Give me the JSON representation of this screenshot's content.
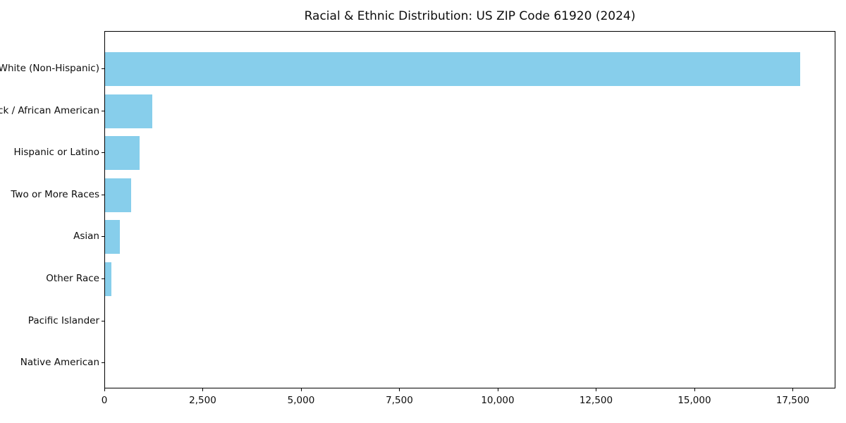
{
  "chart_data": {
    "type": "bar",
    "orientation": "horizontal",
    "title": "Racial & Ethnic Distribution: US ZIP Code 61920 (2024)",
    "categories": [
      "White (Non-Hispanic)",
      "Black / African American",
      "Hispanic or Latino",
      "Two or More Races",
      "Asian",
      "Other Race",
      "Pacific Islander",
      "Native American"
    ],
    "values": [
      17700,
      1200,
      880,
      660,
      380,
      160,
      0,
      0
    ],
    "xlabel": "",
    "ylabel": "",
    "xlim": [
      0,
      18585
    ],
    "x_ticks": [
      0,
      2500,
      5000,
      7500,
      10000,
      12500,
      15000,
      17500
    ],
    "x_tick_labels": [
      "0",
      "2,500",
      "5,000",
      "7,500",
      "10,000",
      "12,500",
      "15,000",
      "17,500"
    ],
    "bar_color": "#87CEEB",
    "spine_color": "#000000",
    "text_color": "#0d0d0d",
    "grid": false,
    "legend": null
  }
}
